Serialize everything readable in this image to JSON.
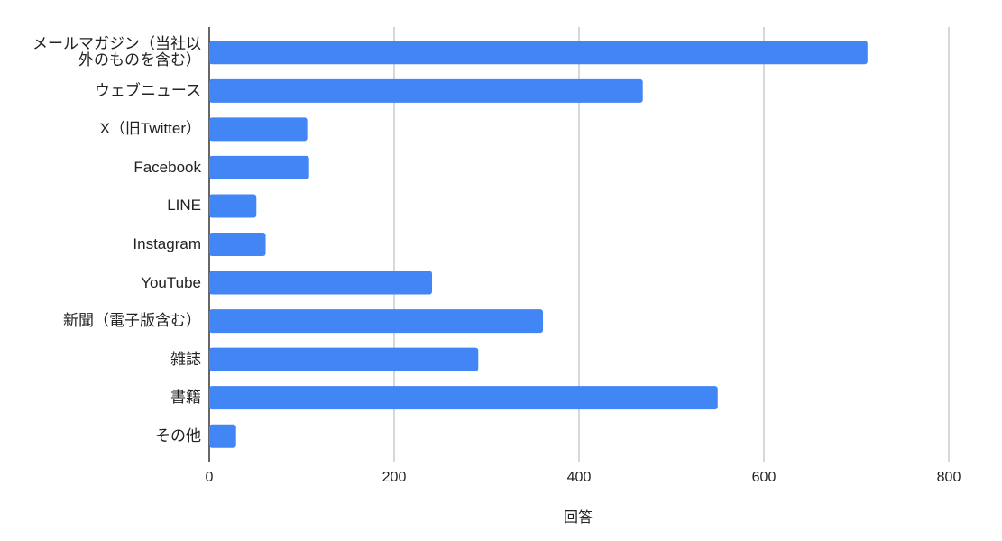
{
  "chart_data": {
    "type": "bar",
    "orientation": "horizontal",
    "x_label": "回答",
    "categories": [
      "メールマガジン（当社以外のものを含む）",
      "ウェブニュース",
      "X（旧Twitter）",
      "Facebook",
      "LINE",
      "Instagram",
      "YouTube",
      "新聞（電子版含む）",
      "雑誌",
      "書籍",
      "その他"
    ],
    "values": [
      712,
      469,
      106,
      108,
      51,
      61,
      241,
      361,
      291,
      550,
      29
    ],
    "color": "#4285f4",
    "xlim": [
      0,
      800
    ],
    "xticks": [
      0,
      200,
      400,
      600,
      800
    ],
    "grid": true
  }
}
